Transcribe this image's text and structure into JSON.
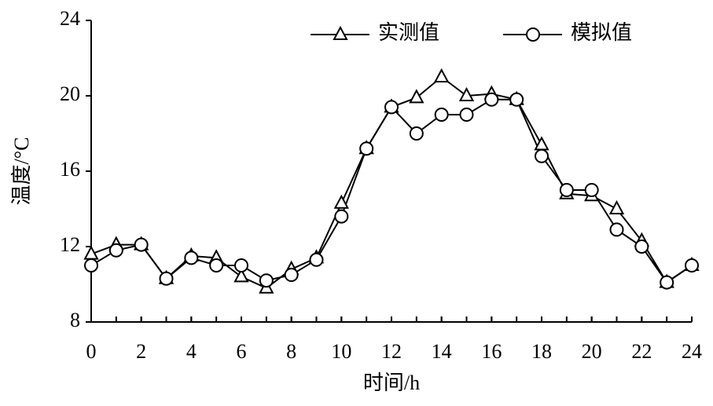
{
  "chart_data": {
    "type": "line",
    "x_label": "时间/h",
    "y_label": "温度/°C",
    "x": [
      0,
      1,
      2,
      3,
      4,
      5,
      6,
      7,
      8,
      9,
      10,
      11,
      12,
      13,
      14,
      15,
      16,
      17,
      18,
      19,
      20,
      21,
      22,
      23,
      24
    ],
    "series": [
      {
        "name": "实测值",
        "color": "#000000",
        "marker": "triangle",
        "values": [
          11.6,
          12.1,
          12.1,
          10.3,
          11.5,
          11.4,
          10.4,
          9.8,
          10.8,
          11.4,
          14.3,
          17.2,
          19.4,
          19.9,
          21.0,
          20.0,
          20.1,
          19.8,
          17.4,
          14.8,
          14.7,
          14.0,
          12.3,
          10.1,
          11.0
        ]
      },
      {
        "name": "模拟值",
        "color": "#000000",
        "marker": "circle",
        "values": [
          11.0,
          11.8,
          12.1,
          10.3,
          11.4,
          11.0,
          11.0,
          10.2,
          10.5,
          11.3,
          13.6,
          17.2,
          19.4,
          18.0,
          19.0,
          19.0,
          19.8,
          19.8,
          16.8,
          15.0,
          15.0,
          12.9,
          12.0,
          10.1,
          11.0
        ]
      }
    ],
    "xlim": [
      0,
      24
    ],
    "xticks": [
      0,
      2,
      4,
      6,
      8,
      10,
      12,
      14,
      16,
      18,
      20,
      22,
      24
    ],
    "ylim": [
      8,
      24
    ],
    "yticks": [
      8,
      12,
      16,
      20,
      24
    ],
    "grid": false,
    "legend": "top"
  }
}
